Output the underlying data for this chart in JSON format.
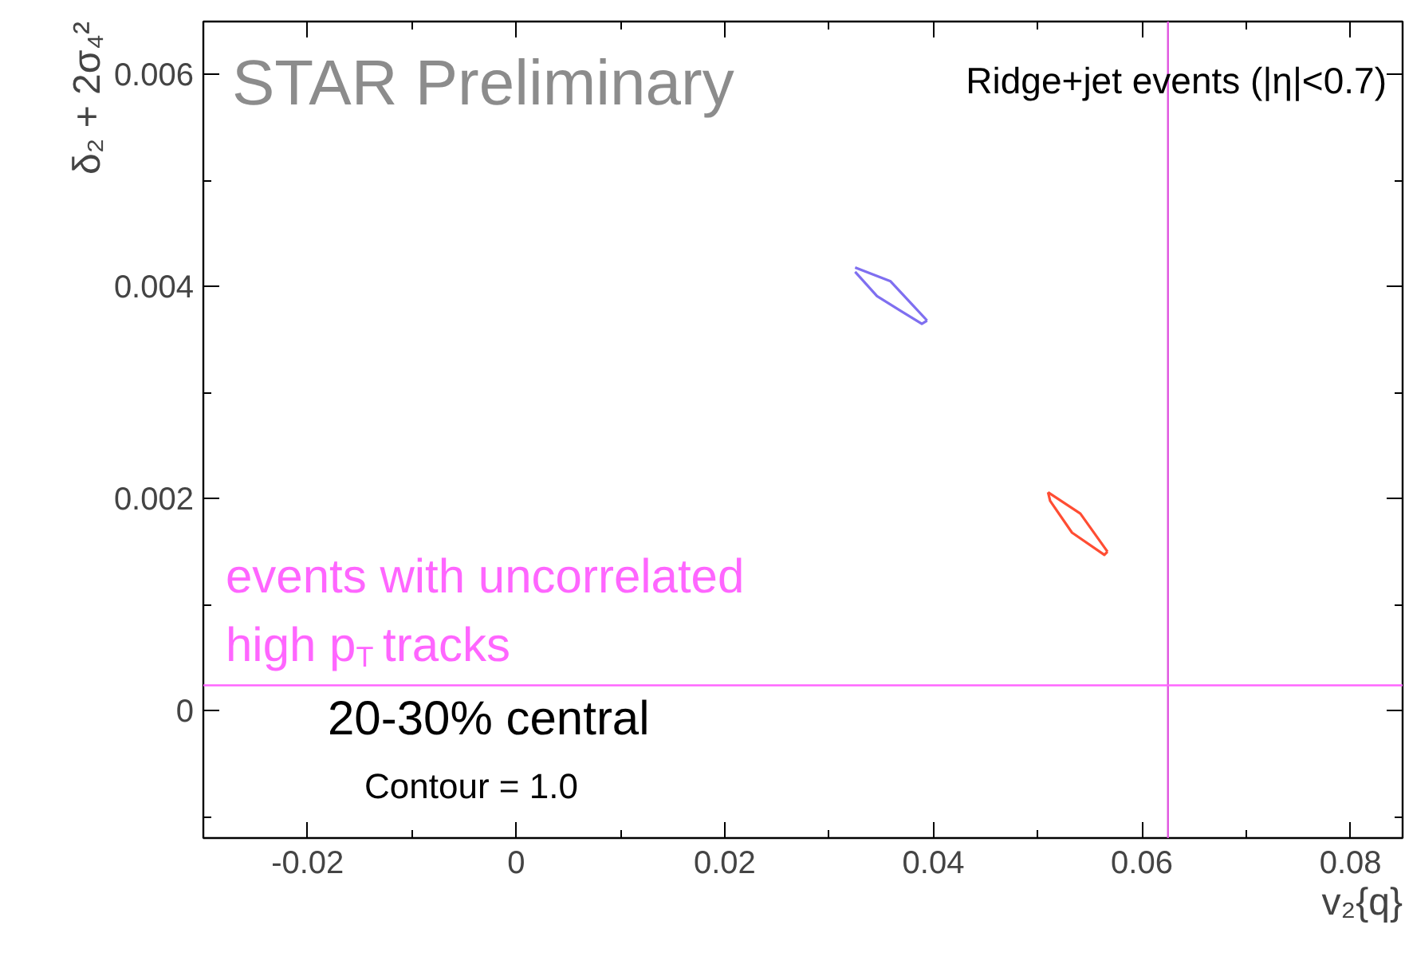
{
  "chart_data": {
    "type": "line",
    "xlabel": "v₂{q}",
    "ylabel": "δ₂ + 2σ₄²",
    "xlim": [
      -0.03,
      0.085
    ],
    "ylim": [
      -0.0012,
      0.0065
    ],
    "xticks": [
      -0.02,
      0,
      0.02,
      0.04,
      0.06,
      0.08
    ],
    "yticks": [
      0,
      0.002,
      0.004,
      0.006
    ],
    "grid": false,
    "marker": "none",
    "line_style": "solid",
    "series": [
      {
        "color": "#7f6ff0",
        "x": [
          0.0325,
          0.0359,
          0.0377,
          0.0394
        ],
        "values": [
          0.00418,
          0.00405,
          0.00386,
          0.00368
        ]
      },
      {
        "color": "#7f6ff0",
        "x": [
          0.0325,
          0.0346,
          0.0369,
          0.0389,
          0.0394
        ],
        "values": [
          0.00414,
          0.00391,
          0.00377,
          0.00365,
          0.00368
        ]
      },
      {
        "color": "#ff4d33",
        "x": [
          0.051,
          0.0541,
          0.0567
        ],
        "values": [
          0.00206,
          0.00186,
          0.0015
        ]
      },
      {
        "color": "#ff4d33",
        "x": [
          0.051,
          0.0512,
          0.0533,
          0.0564,
          0.0567
        ],
        "values": [
          0.00206,
          0.00198,
          0.00168,
          0.00147,
          0.0015
        ]
      }
    ],
    "ref_lines": [
      {
        "axis": "x",
        "value": 0.0625,
        "color": "#e055e0"
      },
      {
        "axis": "y",
        "value": 0.00024,
        "color": "#ff66ff",
        "label": "events with uncorrelated\nhigh p$_{T}$ tracks"
      }
    ],
    "annotations": [
      "STAR Preliminary",
      "Ridge+jet events (|η|<0.7)",
      "20-30% central",
      "Contour = 1.0"
    ]
  }
}
